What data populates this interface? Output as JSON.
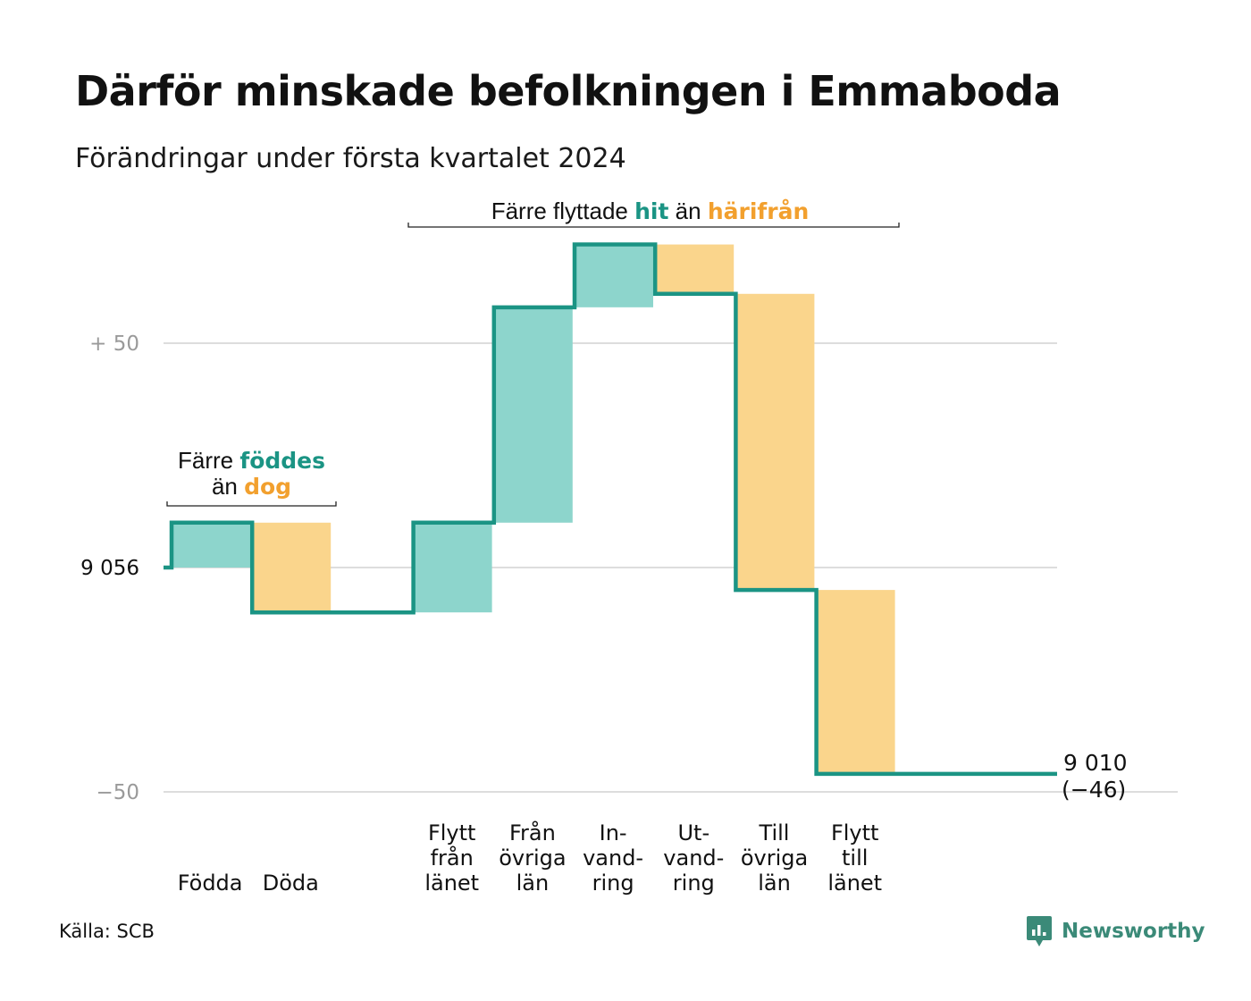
{
  "header": {
    "title": "Därför minskade befolkningen i Emmaboda",
    "subtitle": "Förändringar under första kvartalet 2024"
  },
  "footer": {
    "source": "Källa: SCB",
    "brand": "Newsworthy",
    "brand_icon": "newsworthy-logo-icon"
  },
  "colors": {
    "increase": "#8dd5cc",
    "decrease": "#fad58c",
    "line": "#1b9484",
    "accent_green": "#1b9484",
    "accent_orange": "#f2a02e",
    "grid": "#dddddd",
    "axis_text": "#9a9a9a"
  },
  "chart_data": {
    "type": "waterfall",
    "start_value": 9056,
    "start_label": "9 056",
    "end_value": 9010,
    "end_label": "9 010",
    "end_change_label": "(−46)",
    "y_range_relative": [
      -50,
      50
    ],
    "y_ticks": [
      {
        "value": 50,
        "label": "+ 50",
        "color": "muted"
      },
      {
        "value": 0,
        "label": "9 056",
        "color": "dark"
      },
      {
        "value": -50,
        "label": "−50",
        "color": "muted"
      }
    ],
    "grid": true,
    "steps": [
      {
        "label": [
          "Födda"
        ],
        "change": 10
      },
      {
        "label": [
          "Döda"
        ],
        "change": -20
      },
      {
        "label": [],
        "change": 0
      },
      {
        "label": [
          "Flytt",
          "från",
          "länet"
        ],
        "change": 20
      },
      {
        "label": [
          "Från",
          "övriga",
          "län"
        ],
        "change": 48
      },
      {
        "label": [
          "In-",
          "vand-",
          "ring"
        ],
        "change": 14
      },
      {
        "label": [
          "Ut-",
          "vand-",
          "ring"
        ],
        "change": -11
      },
      {
        "label": [
          "Till",
          "övriga",
          "län"
        ],
        "change": -66
      },
      {
        "label": [
          "Flytt",
          "till",
          "länet"
        ],
        "change": -41
      }
    ],
    "annotations": [
      {
        "id": "births",
        "line1": [
          {
            "text": "Färre ",
            "style": "plain"
          },
          {
            "text": "föddes",
            "style": "green"
          }
        ],
        "line2": [
          {
            "text": "än ",
            "style": "plain"
          },
          {
            "text": "dog",
            "style": "orange"
          }
        ],
        "from_step": 0,
        "to_step": 1
      },
      {
        "id": "migration",
        "line1": [
          {
            "text": "Färre flyttade ",
            "style": "plain"
          },
          {
            "text": "hit",
            "style": "green"
          },
          {
            "text": "  än ",
            "style": "plain"
          },
          {
            "text": "härifrån",
            "style": "orange"
          }
        ],
        "from_step": 3,
        "to_step": 8
      }
    ]
  }
}
